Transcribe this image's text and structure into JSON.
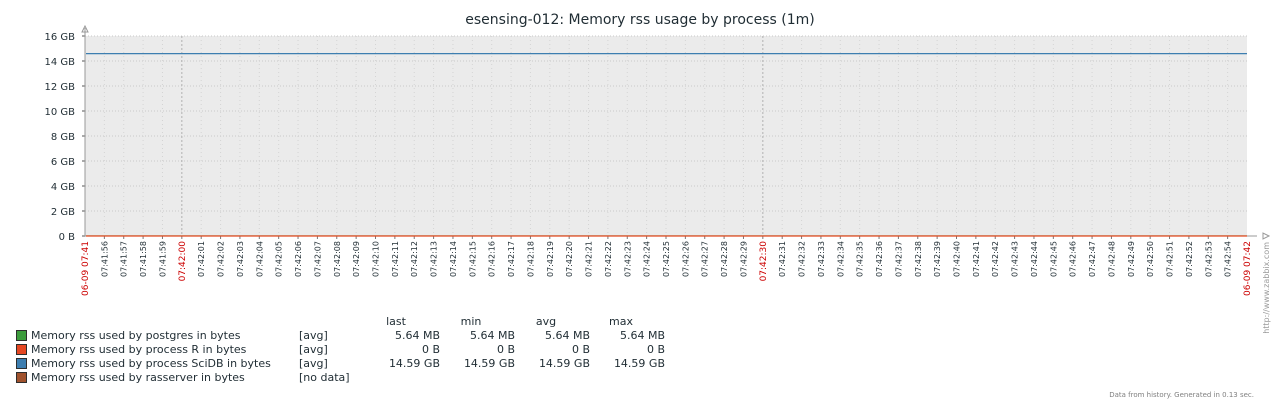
{
  "chart_data": {
    "type": "line",
    "title": "esensing-012: Memory rss usage by process (1m)",
    "xlabel": "",
    "ylabel": "",
    "ylim": [
      0,
      16
    ],
    "y_unit": "GB",
    "y_ticks": [
      "0 B",
      "2 GB",
      "4 GB",
      "6 GB",
      "8 GB",
      "10 GB",
      "12 GB",
      "14 GB",
      "16 GB"
    ],
    "x_start_label": "06-09 07:41",
    "x_end_label": "06-09 07:42",
    "x_ticks": [
      "07:41:56",
      "07:41:57",
      "07:41:58",
      "07:41:59",
      "07:42:00",
      "07:42:01",
      "07:42:02",
      "07:42:03",
      "07:42:04",
      "07:42:05",
      "07:42:06",
      "07:42:07",
      "07:42:08",
      "07:42:09",
      "07:42:10",
      "07:42:11",
      "07:42:12",
      "07:42:13",
      "07:42:14",
      "07:42:15",
      "07:42:16",
      "07:42:17",
      "07:42:18",
      "07:42:19",
      "07:42:20",
      "07:42:21",
      "07:42:22",
      "07:42:23",
      "07:42:24",
      "07:42:25",
      "07:42:26",
      "07:42:27",
      "07:42:28",
      "07:42:29",
      "07:42:30",
      "07:42:31",
      "07:42:32",
      "07:42:33",
      "07:42:34",
      "07:42:35",
      "07:42:36",
      "07:42:37",
      "07:42:38",
      "07:42:39",
      "07:42:40",
      "07:42:41",
      "07:42:42",
      "07:42:43",
      "07:42:44",
      "07:42:45",
      "07:42:46",
      "07:42:47",
      "07:42:48",
      "07:42:49",
      "07:42:50",
      "07:42:51",
      "07:42:52",
      "07:42:53",
      "07:42:54"
    ],
    "major_ticks": [
      "07:42:00",
      "07:42:30"
    ],
    "grid": true,
    "series": [
      {
        "name": "Memory rss used by postgres in bytes",
        "color": "#3c9c3c",
        "func": "[avg]",
        "last": "5.64 MB",
        "min": "5.64 MB",
        "avg": "5.64 MB",
        "max": "5.64 MB",
        "value_gb": 0.0056
      },
      {
        "name": "Memory rss used by process R in bytes",
        "color": "#e54722",
        "func": "[avg]",
        "last": "0 B",
        "min": "0 B",
        "avg": "0 B",
        "max": "0 B",
        "value_gb": 0
      },
      {
        "name": "Memory rss used by process SciDB in bytes",
        "color": "#3d7eb0",
        "func": "[avg]",
        "last": "14.59 GB",
        "min": "14.59 GB",
        "avg": "14.59 GB",
        "max": "14.59 GB",
        "value_gb": 14.59
      },
      {
        "name": "Memory rss used by rasserver in bytes",
        "color": "#a0522d",
        "func": "[no data]",
        "last": "",
        "min": "",
        "avg": "",
        "max": "",
        "value_gb": null
      }
    ]
  },
  "legend_headers": {
    "last": "last",
    "min": "min",
    "avg": "avg",
    "max": "max"
  },
  "footer": "Data from history. Generated in 0.13 sec.",
  "watermark": "http://www.zabbix.com"
}
